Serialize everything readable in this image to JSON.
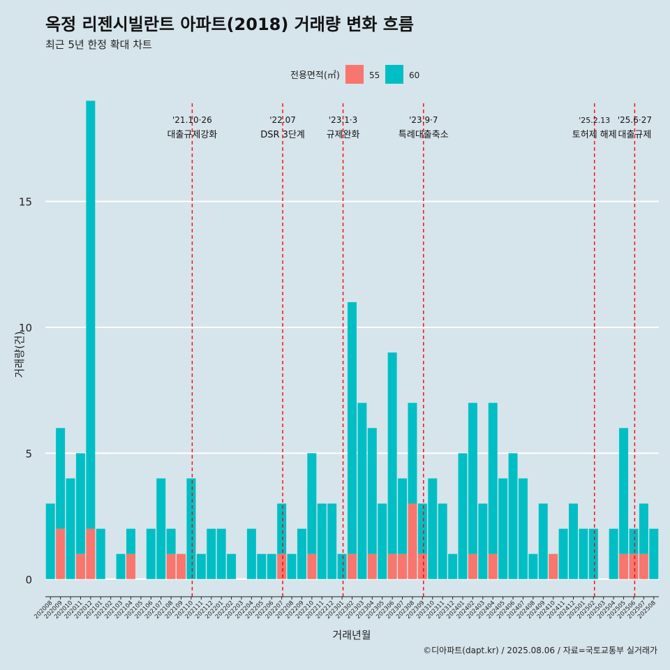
{
  "chart_data": {
    "type": "bar",
    "title": "옥정 리젠시빌란트 아파트(2018) 거래량 변화 흐름",
    "subtitle": "최근 5년 한정 확대 차트",
    "xlabel": "거래년월",
    "ylabel": "거래량(건)",
    "ylim": [
      -0.7,
      18.9
    ],
    "yticks": [
      0,
      5,
      10,
      15
    ],
    "grid": true,
    "legend": {
      "title": "전용면적(㎡)",
      "position": "top",
      "items": [
        {
          "label": "55",
          "color": "#f8766d"
        },
        {
          "label": "60",
          "color": "#00bfc4"
        }
      ]
    },
    "categories": [
      "202008",
      "202009",
      "202010",
      "202011",
      "202012",
      "202101",
      "202102",
      "202103",
      "202104",
      "202105",
      "202106",
      "202107",
      "202108",
      "202109",
      "202110",
      "202111",
      "202112",
      "202201",
      "202202",
      "202203",
      "202204",
      "202205",
      "202206",
      "202207",
      "202208",
      "202209",
      "202210",
      "202211",
      "202212",
      "202301",
      "202302",
      "202303",
      "202304",
      "202305",
      "202306",
      "202307",
      "202308",
      "202309",
      "202310",
      "202311",
      "202312",
      "202401",
      "202402",
      "202403",
      "202404",
      "202405",
      "202406",
      "202407",
      "202408",
      "202409",
      "202410",
      "202411",
      "202412",
      "202501",
      "202502",
      "202503",
      "202504",
      "202505",
      "202506",
      "202507",
      "202508"
    ],
    "series": [
      {
        "name": "55",
        "color": "#f8766d",
        "values": [
          0,
          2,
          0,
          1,
          2,
          0,
          0,
          0,
          1,
          0,
          0,
          0,
          1,
          1,
          0,
          0,
          0,
          0,
          0,
          0,
          0,
          0,
          0,
          1,
          0,
          0,
          1,
          0,
          0,
          0,
          1,
          0,
          1,
          0,
          1,
          1,
          3,
          1,
          0,
          0,
          0,
          0,
          1,
          0,
          1,
          0,
          0,
          0,
          0,
          0,
          1,
          0,
          0,
          0,
          0,
          0,
          0,
          1,
          1,
          1,
          0
        ]
      },
      {
        "name": "60",
        "color": "#00bfc4",
        "values": [
          3,
          4,
          4,
          4,
          17,
          2,
          0,
          1,
          1,
          0,
          2,
          4,
          1,
          0,
          4,
          1,
          2,
          2,
          1,
          0,
          2,
          1,
          1,
          2,
          1,
          2,
          4,
          3,
          3,
          1,
          10,
          7,
          5,
          3,
          8,
          3,
          4,
          2,
          4,
          3,
          1,
          5,
          6,
          3,
          6,
          4,
          5,
          4,
          1,
          3,
          0,
          2,
          3,
          2,
          2,
          0,
          2,
          5,
          1,
          2,
          2
        ]
      }
    ],
    "annotations": [
      {
        "date": "'21.10·26",
        "label": "대출규제강화",
        "at": 14.1
      },
      {
        "date": "'22.07",
        "label": "DSR 3단계",
        "at": 23.1
      },
      {
        "date": "'23.1·3",
        "label": "규제완화",
        "at": 29.1
      },
      {
        "date": "'23.9·7",
        "label": "특례대출축소",
        "at": 37.1
      },
      {
        "date": "'25.2.13",
        "label": "토허제 해제",
        "at": 54.1
      },
      {
        "date": "'25.6·27",
        "label": "대출규제",
        "at": 58.1
      }
    ],
    "caption": "©디아파트(dapt.kr) / 2025.08.06 / 자료=국토교통부 실거래가"
  }
}
